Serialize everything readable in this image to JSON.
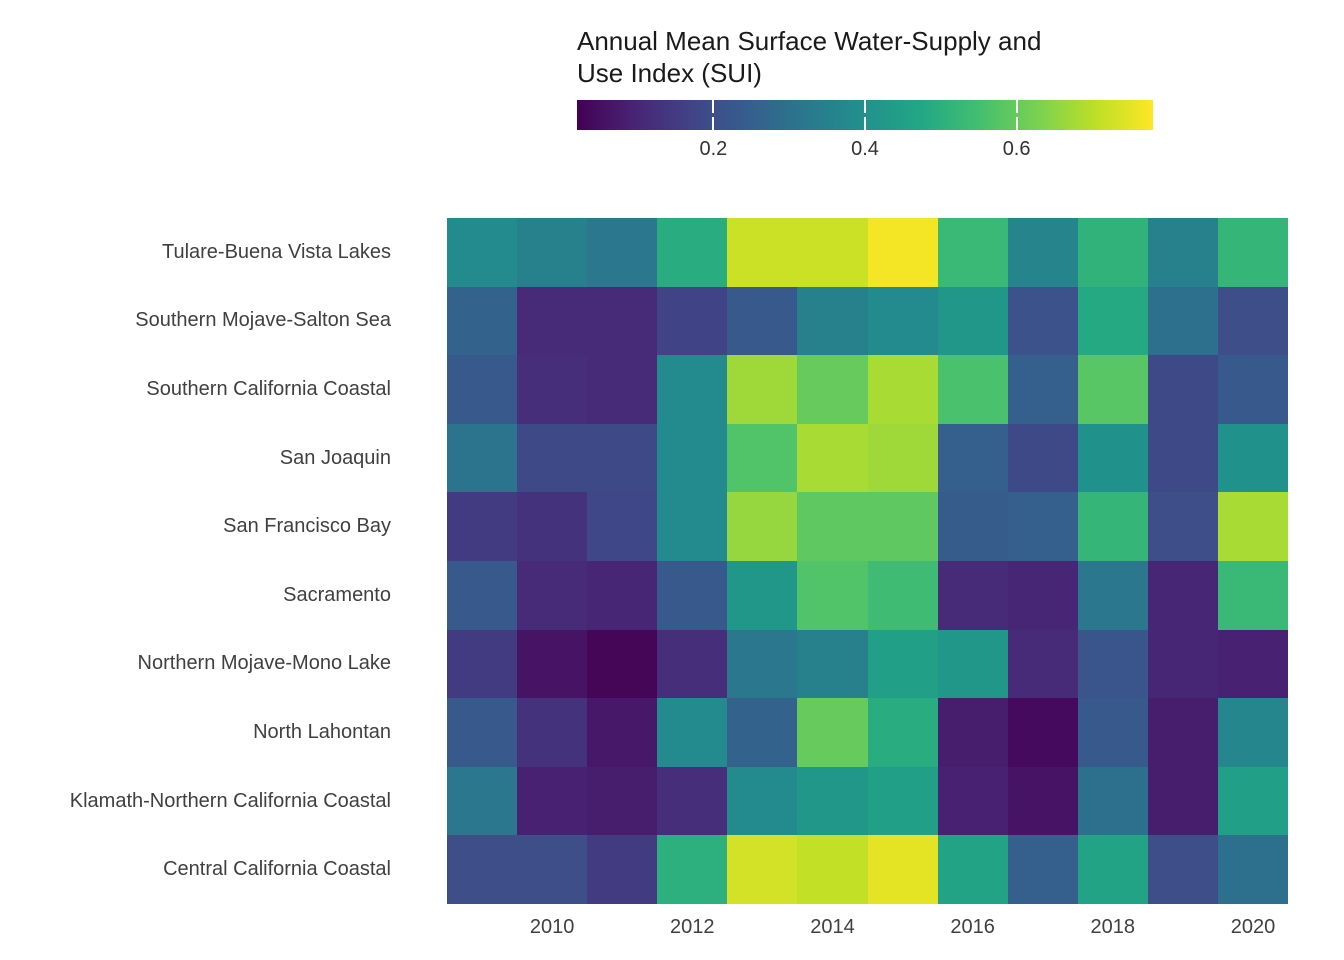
{
  "legend": {
    "title": "Annual Mean Surface Water-Supply and Use Index (SUI)",
    "title_lines": [
      "Annual Mean Surface Water-Supply and",
      "Use Index (SUI)"
    ]
  },
  "colorbar": {
    "colormap": "viridis",
    "tick_labels": [
      "0.2",
      "0.4",
      "0.6"
    ],
    "tick_values": [
      0.2,
      0.4,
      0.6
    ],
    "domain_min": 0.02,
    "domain_max": 0.78
  },
  "chart_data": {
    "type": "heatmap",
    "title": "Annual Mean Surface Water-Supply and Use Index (SUI)",
    "colormap": "viridis",
    "value_range": [
      0.02,
      0.78
    ],
    "x": [
      2009,
      2010,
      2011,
      2012,
      2013,
      2014,
      2015,
      2016,
      2017,
      2018,
      2019,
      2020
    ],
    "x_tick_labels": [
      "2010",
      "2012",
      "2014",
      "2016",
      "2018",
      "2020"
    ],
    "rows": [
      {
        "name": "Tulare-Buena Vista Lakes",
        "values": [
          0.38,
          0.35,
          0.32,
          0.49,
          0.72,
          0.72,
          0.77,
          0.53,
          0.36,
          0.51,
          0.35,
          0.52
        ]
      },
      {
        "name": "Southern Mojave-Salton Sea",
        "values": [
          0.26,
          0.11,
          0.11,
          0.17,
          0.23,
          0.35,
          0.38,
          0.42,
          0.21,
          0.48,
          0.3,
          0.2
        ]
      },
      {
        "name": "Southern California Coastal",
        "values": [
          0.23,
          0.12,
          0.11,
          0.38,
          0.67,
          0.6,
          0.68,
          0.56,
          0.25,
          0.58,
          0.19,
          0.23
        ]
      },
      {
        "name": "San Joaquin",
        "values": [
          0.31,
          0.19,
          0.19,
          0.38,
          0.57,
          0.68,
          0.67,
          0.25,
          0.19,
          0.4,
          0.19,
          0.4
        ]
      },
      {
        "name": "San Francisco Bay",
        "values": [
          0.15,
          0.13,
          0.18,
          0.38,
          0.66,
          0.59,
          0.59,
          0.24,
          0.25,
          0.52,
          0.2,
          0.68
        ]
      },
      {
        "name": "Sacramento",
        "values": [
          0.23,
          0.11,
          0.1,
          0.23,
          0.42,
          0.57,
          0.54,
          0.11,
          0.1,
          0.32,
          0.1,
          0.53
        ]
      },
      {
        "name": "Northern Mojave-Mono Lake",
        "values": [
          0.15,
          0.06,
          0.03,
          0.12,
          0.32,
          0.35,
          0.45,
          0.42,
          0.11,
          0.22,
          0.1,
          0.09
        ]
      },
      {
        "name": "North Lahontan",
        "values": [
          0.23,
          0.13,
          0.07,
          0.38,
          0.26,
          0.6,
          0.49,
          0.08,
          0.04,
          0.23,
          0.08,
          0.37
        ]
      },
      {
        "name": "Klamath-Northern California Coastal",
        "values": [
          0.32,
          0.09,
          0.08,
          0.12,
          0.38,
          0.42,
          0.45,
          0.09,
          0.06,
          0.3,
          0.08,
          0.45
        ]
      },
      {
        "name": "Central California Coastal",
        "values": [
          0.2,
          0.2,
          0.15,
          0.5,
          0.73,
          0.71,
          0.75,
          0.46,
          0.25,
          0.46,
          0.2,
          0.3
        ]
      }
    ]
  }
}
